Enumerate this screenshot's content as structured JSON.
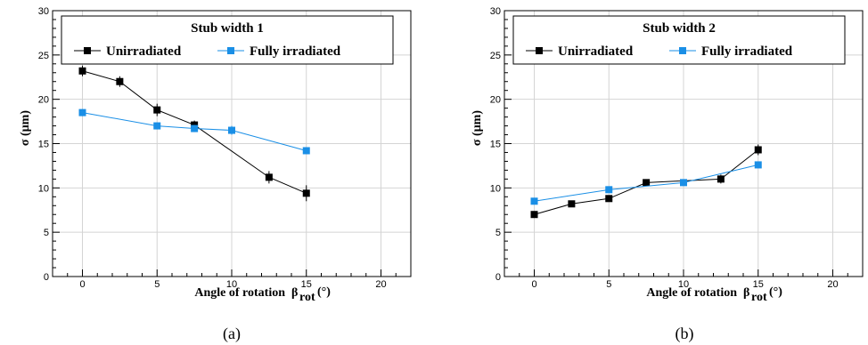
{
  "chart_data": [
    {
      "type": "line",
      "caption": "(a)",
      "title": "Stub width 1",
      "xlabel": "Angle of rotation",
      "xlabel_symbol": "β",
      "xlabel_subscript": "rot",
      "xlabel_unit": "(°)",
      "ylabel": "σ (µm)",
      "xlim": [
        -2,
        22
      ],
      "ylim": [
        0,
        30
      ],
      "xticks": [
        "0",
        "5",
        "10",
        "15",
        "20"
      ],
      "yticks": [
        "0",
        "5",
        "10",
        "15",
        "20",
        "25",
        "30"
      ],
      "grid": true,
      "legend_position": "top-center",
      "series": [
        {
          "name": "Unirradiated",
          "color": "#000000",
          "x": [
            0,
            2.5,
            5,
            7.5,
            12.5,
            15
          ],
          "y": [
            23.2,
            22.0,
            18.8,
            17.1,
            11.2,
            9.4
          ],
          "err": [
            0.6,
            0.6,
            0.7,
            0.5,
            0.7,
            0.9
          ]
        },
        {
          "name": "Fully irradiated",
          "color": "#1a8fe6",
          "x": [
            0,
            5,
            7.5,
            10,
            15
          ],
          "y": [
            18.5,
            17.0,
            16.7,
            16.5,
            14.2
          ],
          "err": [
            0.4,
            0.4,
            0.4,
            0.5,
            0.4
          ]
        }
      ]
    },
    {
      "type": "line",
      "caption": "(b)",
      "title": "Stub width 2",
      "xlabel": "Angle of rotation",
      "xlabel_symbol": "β",
      "xlabel_subscript": "rot",
      "xlabel_unit": "(°)",
      "ylabel": "σ (µm)",
      "xlim": [
        -2,
        22
      ],
      "ylim": [
        0,
        30
      ],
      "xticks": [
        "0",
        "5",
        "10",
        "15",
        "20"
      ],
      "yticks": [
        "0",
        "5",
        "10",
        "15",
        "20",
        "25",
        "30"
      ],
      "grid": true,
      "legend_position": "top-center",
      "series": [
        {
          "name": "Unirradiated",
          "color": "#000000",
          "x": [
            0,
            2.5,
            5,
            7.5,
            12.5,
            15
          ],
          "y": [
            7.0,
            8.2,
            8.8,
            10.6,
            11.0,
            14.3
          ],
          "err": [
            0.3,
            0.3,
            0.3,
            0.3,
            0.5,
            0.6
          ]
        },
        {
          "name": "Fully irradiated",
          "color": "#1a8fe6",
          "x": [
            0,
            5,
            10,
            15
          ],
          "y": [
            8.5,
            9.8,
            10.6,
            12.6
          ],
          "err": [
            0.2,
            0.2,
            0.2,
            0.3
          ]
        }
      ]
    }
  ]
}
